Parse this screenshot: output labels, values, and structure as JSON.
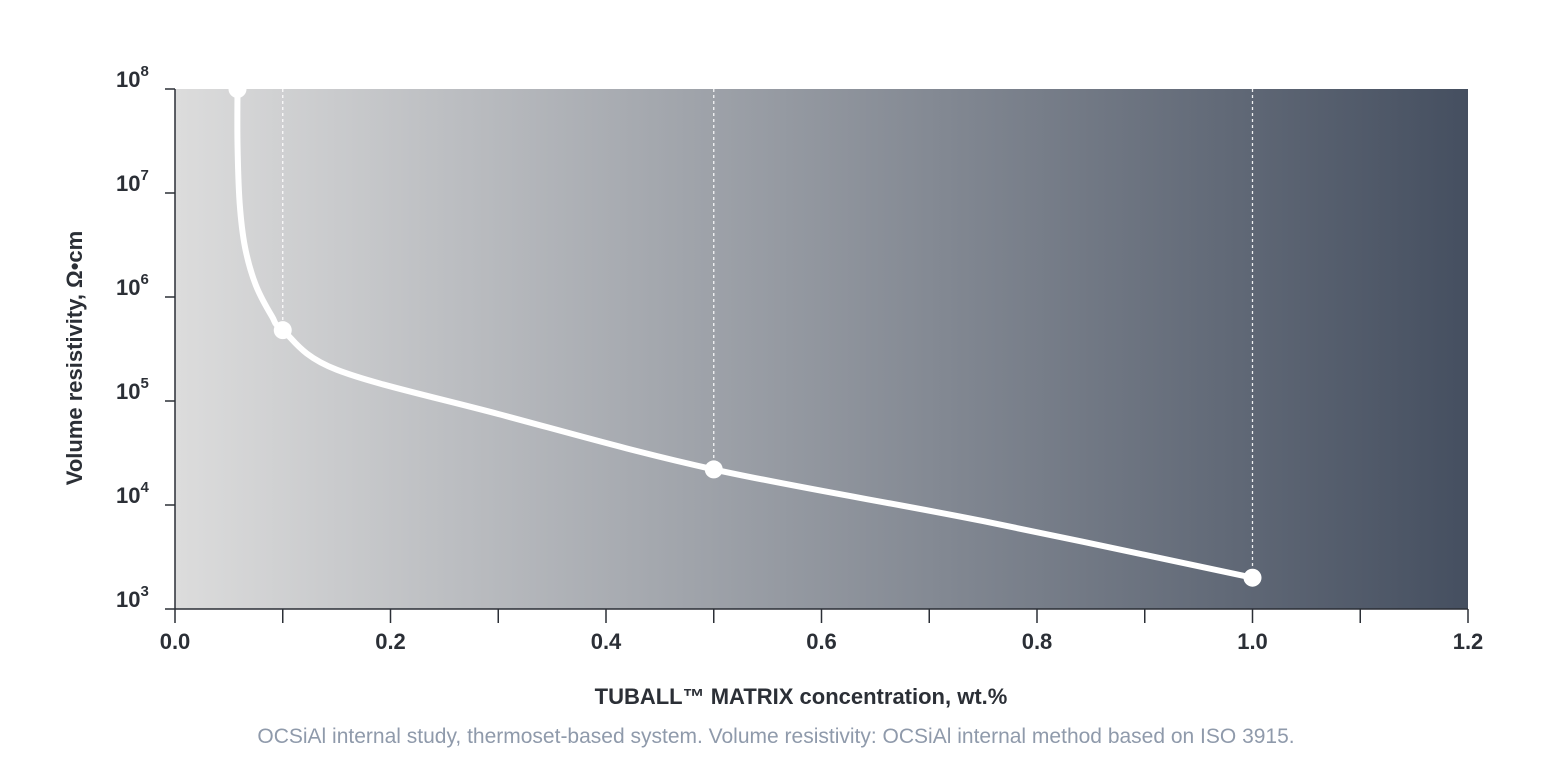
{
  "note": "OCSiAl internal study, thermoset-based system. Volume resistivity: OCSiAl internal method based on ISO 3915.",
  "chart_data": {
    "type": "line",
    "xlabel": "TUBALL™ MATRIX concentration, wt.%",
    "ylabel": "Volume resistivity, Ω•cm",
    "xlim": [
      0.0,
      1.2
    ],
    "ylim": [
      1000,
      100000000
    ],
    "y_scale": "log",
    "x_ticks": [
      "0.0",
      "0.2",
      "0.4",
      "0.6",
      "0.8",
      "1.0",
      "1.2"
    ],
    "x_tick_values": [
      0.0,
      0.2,
      0.4,
      0.6,
      0.8,
      1.0,
      1.2
    ],
    "x_minor_ticks": [
      0.1,
      0.3,
      0.5,
      0.7,
      0.9,
      1.1
    ],
    "y_ticks": [
      {
        "base": "10",
        "exp": "8",
        "value": 100000000
      },
      {
        "base": "10",
        "exp": "7",
        "value": 10000000
      },
      {
        "base": "10",
        "exp": "6",
        "value": 1000000
      },
      {
        "base": "10",
        "exp": "5",
        "value": 100000
      },
      {
        "base": "10",
        "exp": "4",
        "value": 10000
      },
      {
        "base": "10",
        "exp": "3",
        "value": 1000
      }
    ],
    "series": [
      {
        "curve": [
          {
            "x": 0.058,
            "y": 100000000
          },
          {
            "x": 0.058,
            "y": 30000000
          },
          {
            "x": 0.06,
            "y": 8000000
          },
          {
            "x": 0.065,
            "y": 3000000
          },
          {
            "x": 0.075,
            "y": 1300000
          },
          {
            "x": 0.09,
            "y": 650000
          },
          {
            "x": 0.1,
            "y": 480000
          },
          {
            "x": 0.15,
            "y": 200000
          },
          {
            "x": 0.3,
            "y": 75000
          },
          {
            "x": 0.5,
            "y": 22000
          },
          {
            "x": 0.75,
            "y": 7000
          },
          {
            "x": 1.0,
            "y": 2000
          }
        ],
        "markers": [
          {
            "x": 0.058,
            "y": 100000000
          },
          {
            "x": 0.1,
            "y": 480000
          },
          {
            "x": 0.5,
            "y": 22000
          },
          {
            "x": 1.0,
            "y": 2000
          }
        ],
        "color": "#ffffff"
      }
    ],
    "reference_lines_x": [
      0.1,
      0.5,
      1.0
    ],
    "background_gradient": [
      "#dcdcdc",
      "#454f60"
    ],
    "grid": false,
    "legend": "none"
  }
}
